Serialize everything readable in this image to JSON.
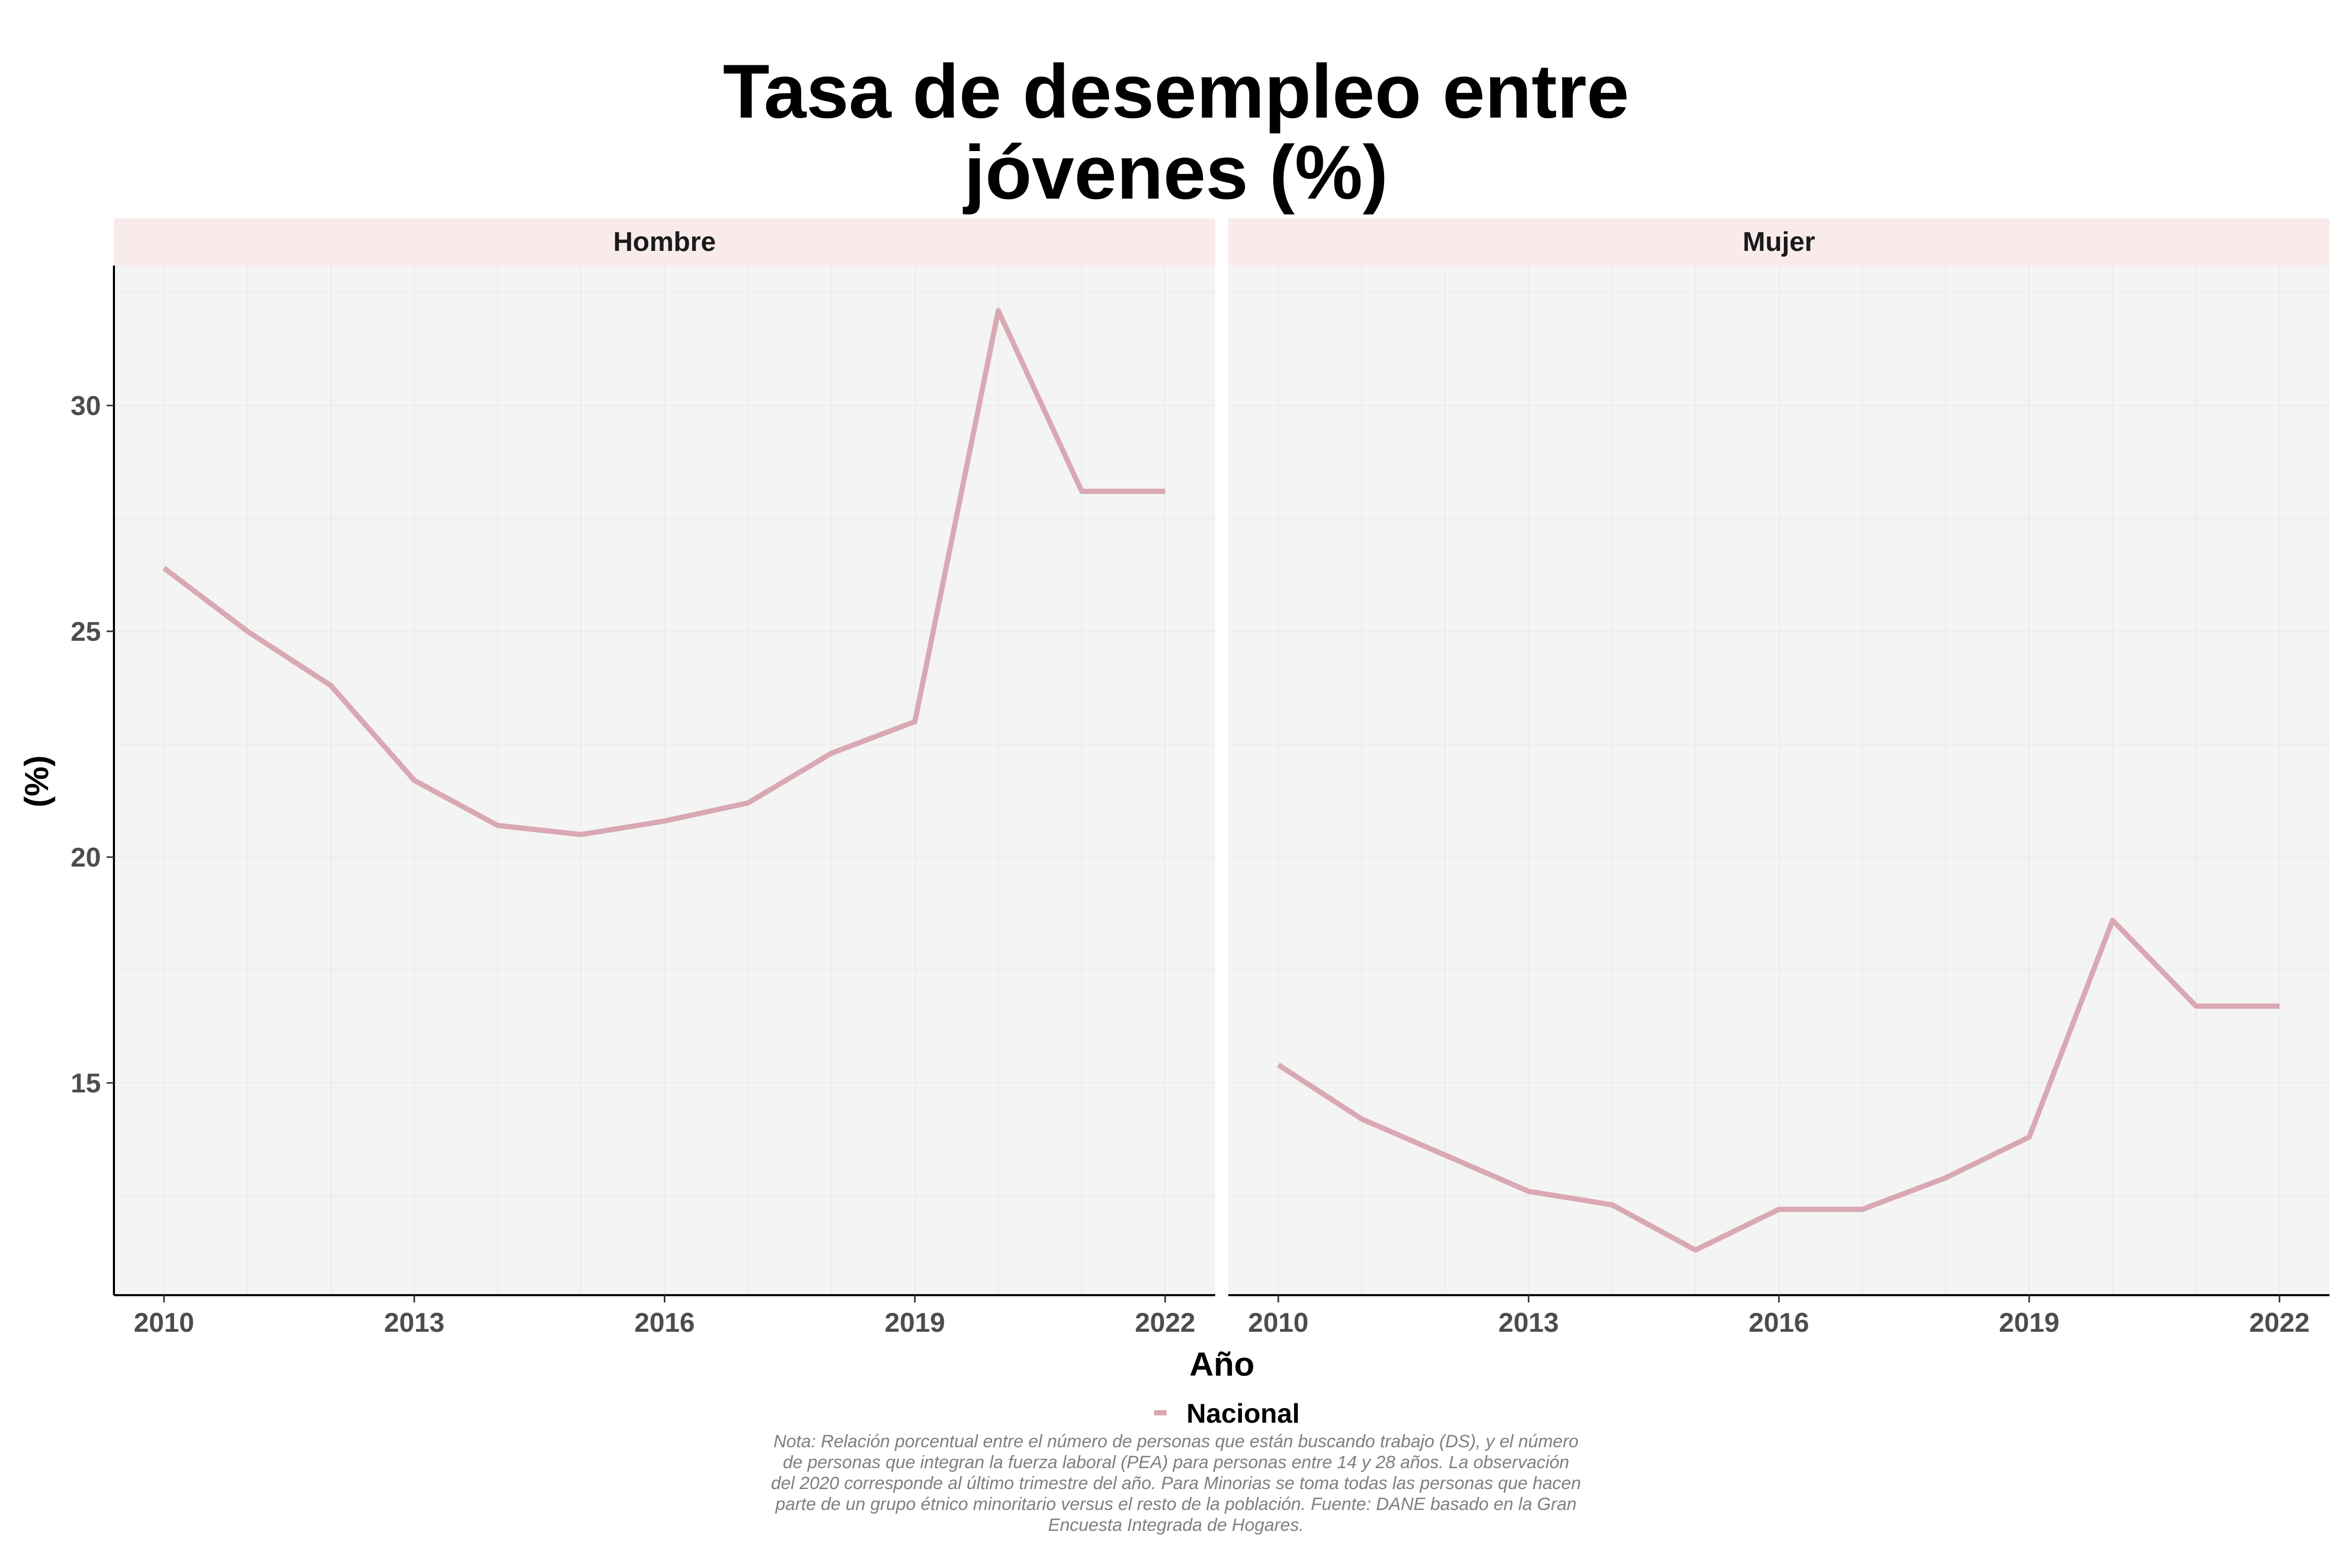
{
  "chart_data": {
    "type": "line",
    "title_lines": [
      "Tasa de desempleo entre",
      "jóvenes (%)"
    ],
    "xlabel": "Año",
    "ylabel": "(%)",
    "x": [
      2010,
      2011,
      2012,
      2013,
      2014,
      2015,
      2016,
      2017,
      2018,
      2019,
      2020,
      2021,
      2022
    ],
    "xticks": [
      2010,
      2013,
      2016,
      2019,
      2022
    ],
    "yticks": [
      15,
      20,
      25,
      30
    ],
    "ylim": [
      10.3,
      33.1
    ],
    "xlim": [
      2009.4,
      2022.6
    ],
    "grid": true,
    "legend_position": "bottom",
    "legend": [
      {
        "name": "Nacional",
        "color": "#d9a8b3"
      }
    ],
    "panels": [
      {
        "label": "Hombre",
        "series": [
          {
            "name": "Nacional",
            "values": [
              26.4,
              25.0,
              23.8,
              21.7,
              20.7,
              20.5,
              20.8,
              21.2,
              22.3,
              23.0,
              32.1,
              28.1,
              28.1
            ]
          }
        ]
      },
      {
        "label": "Mujer",
        "series": [
          {
            "name": "Nacional",
            "values": [
              15.4,
              14.2,
              13.4,
              12.6,
              12.3,
              11.3,
              12.2,
              12.2,
              12.9,
              13.8,
              18.6,
              16.7,
              16.7
            ]
          }
        ]
      }
    ],
    "note_lines": [
      "Nota: Relación porcentual entre el número de personas que están buscando trabajo (DS), y el número",
      "de personas que integran la fuerza laboral (PEA) para personas entre 14 y 28 años. La observación",
      "del 2020 corresponde al último trimestre del año. Para Minorias se toma todas las personas que hacen",
      "parte de un grupo étnico minoritario versus el resto de la población. Fuente: DANE basado en la Gran",
      "Encuesta Integrada de Hogares."
    ]
  }
}
